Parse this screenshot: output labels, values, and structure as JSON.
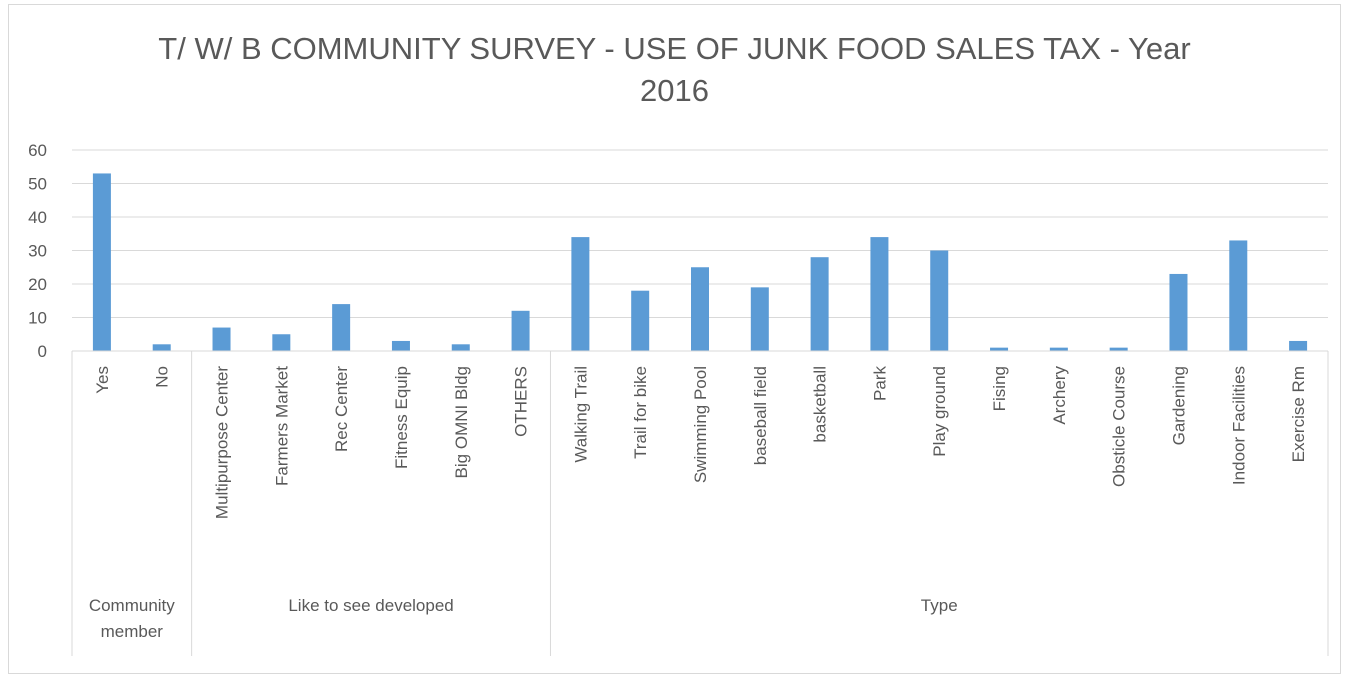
{
  "chart_data": {
    "type": "bar",
    "title_lines": [
      "T/ W/ B COMMUNITY SURVEY - USE OF JUNK FOOD SALES TAX - Year",
      "2016"
    ],
    "xlabel": "",
    "ylabel": "",
    "ylim": [
      0,
      60
    ],
    "yticks": [
      0,
      10,
      20,
      30,
      40,
      50,
      60
    ],
    "grid": true,
    "legend": "none",
    "bar_color": "#5b9bd5",
    "categories": [
      "Yes",
      "No",
      "Multipurpose Center",
      "Farmers Market",
      "Rec Center",
      "Fitness Equip",
      "Big OMNI Bldg",
      "OTHERS",
      "Walking Trail",
      "Trail for bike",
      "Swimming Pool",
      "baseball field",
      "basketball",
      "Park",
      "Play ground",
      "Fising",
      "Archery",
      "Obsticle Course",
      "Gardening",
      "Indoor Facilities",
      "Exercise Rm"
    ],
    "values": [
      53,
      2,
      7,
      5,
      14,
      3,
      2,
      12,
      34,
      18,
      25,
      19,
      28,
      34,
      30,
      1,
      1,
      1,
      23,
      33,
      3
    ],
    "groups": [
      {
        "label_lines": [
          "Community",
          "member"
        ],
        "count": 2
      },
      {
        "label_lines": [
          "Like to see developed"
        ],
        "count": 6
      },
      {
        "label_lines": [
          "Type"
        ],
        "count": 13
      }
    ]
  }
}
